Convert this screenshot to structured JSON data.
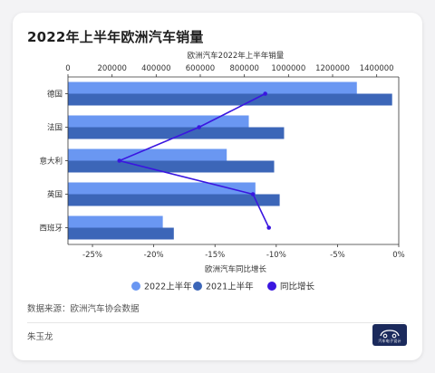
{
  "title": "2022年上半年欧洲汽车销量",
  "source": "数据来源：欧洲汽车协会数据",
  "author": "朱玉龙",
  "logo_text": "汽车电子设计",
  "logo_icon": "car-icon",
  "chart_data": {
    "type": "bar",
    "orientation": "horizontal",
    "title": "",
    "categories": [
      "德国",
      "法国",
      "意大利",
      "英国",
      "西班牙"
    ],
    "top_axis": {
      "label": "欧洲汽车2022年上半年销量",
      "lim": [
        0,
        1500000
      ],
      "ticks": [
        0,
        200000,
        400000,
        600000,
        800000,
        1000000,
        1200000,
        1400000
      ],
      "tick_labels": [
        "0",
        "200000",
        "400000",
        "600000",
        "800000",
        "1000000",
        "1200000",
        "1400000"
      ]
    },
    "bottom_axis": {
      "label": "欧洲汽车同比增长",
      "lim": [
        -27,
        0
      ],
      "ticks": [
        -25,
        -20,
        -15,
        -10,
        -5,
        0
      ],
      "tick_labels": [
        "-25%",
        "-20%",
        "-15%",
        "-10%",
        "-5%",
        "0%"
      ]
    },
    "series": [
      {
        "name": "2022上半年",
        "axis": "top",
        "color": "#6a97f2",
        "values": [
          1310000,
          820000,
          720000,
          850000,
          430000
        ]
      },
      {
        "name": "2021上半年",
        "axis": "top",
        "color": "#3c66b8",
        "values": [
          1470000,
          980000,
          935000,
          960000,
          480000
        ]
      },
      {
        "name": "同比增长",
        "axis": "bottom",
        "type": "line",
        "color": "#3a16e0",
        "values": [
          -10.9,
          -16.3,
          -22.8,
          -11.9,
          -10.6
        ]
      }
    ],
    "legend_position": "bottom",
    "grid": false
  }
}
